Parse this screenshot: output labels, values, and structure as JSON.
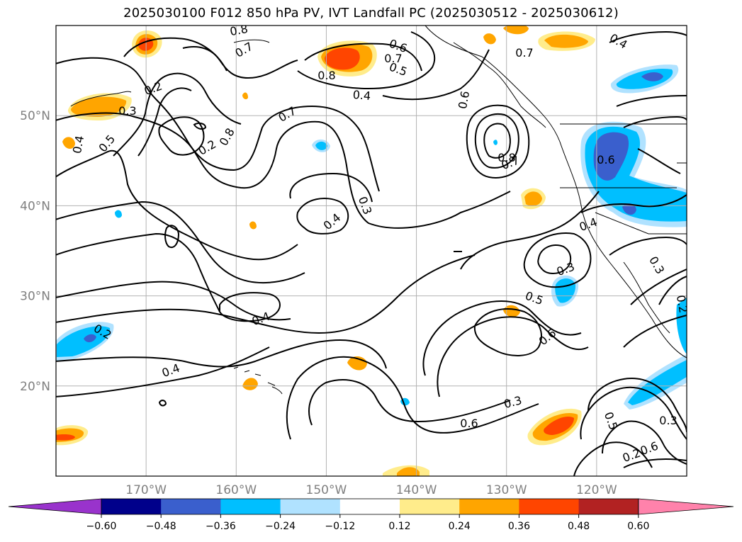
{
  "title": "2025030100 F012 850 hPa PV, IVT Landfall PC (2025030512 - 2025030612)",
  "map": {
    "projection": "lat-lon",
    "lon_range_west": [
      180,
      110
    ],
    "lat_range": [
      10,
      60
    ],
    "grid": true,
    "lat_ticks": [
      {
        "lat": 50,
        "label": "50°N"
      },
      {
        "lat": 40,
        "label": "40°N"
      },
      {
        "lat": 30,
        "label": "30°N"
      },
      {
        "lat": 20,
        "label": "20°N"
      }
    ],
    "lon_ticks": [
      {
        "lonW": 170,
        "label": "170°W"
      },
      {
        "lonW": 160,
        "label": "160°W"
      },
      {
        "lonW": 150,
        "label": "150°W"
      },
      {
        "lonW": 140,
        "label": "140°W"
      },
      {
        "lonW": 130,
        "label": "130°W"
      },
      {
        "lonW": 120,
        "label": "120°W"
      }
    ],
    "contour_labels": [
      "0.8",
      "0.7",
      "0.2",
      "0.6",
      "0.5",
      "0.7",
      "0.8",
      "0.4",
      "0.7",
      "0.3",
      "0.5",
      "0.4",
      "0.2",
      "0.8",
      "0.7",
      "0.6",
      "0.8",
      "0.7",
      "0.4",
      "0.3",
      "0.4",
      "0.6",
      "0.4",
      "0.3",
      "0.5",
      "0.6",
      "0.3",
      "0.2",
      "0.4",
      "0.2",
      "0.4",
      "0.3",
      "0.6",
      "0.5",
      "0.3",
      "0.2",
      "0.6"
    ]
  },
  "colorbar": {
    "ticks": [
      "−0.60",
      "−0.48",
      "−0.36",
      "−0.24",
      "−0.12",
      "0.12",
      "0.24",
      "0.36",
      "0.48",
      "0.60"
    ],
    "bins": [
      {
        "color": "#9933cc"
      },
      {
        "color": "#00008b"
      },
      {
        "color": "#3a5fcd"
      },
      {
        "color": "#00bfff"
      },
      {
        "color": "#b0e2ff"
      },
      {
        "color": "#ffffff"
      },
      {
        "color": "#ffec8b"
      },
      {
        "color": "#ffa500"
      },
      {
        "color": "#ff4500"
      },
      {
        "color": "#b22222"
      },
      {
        "color": "#ff82ab"
      }
    ]
  }
}
